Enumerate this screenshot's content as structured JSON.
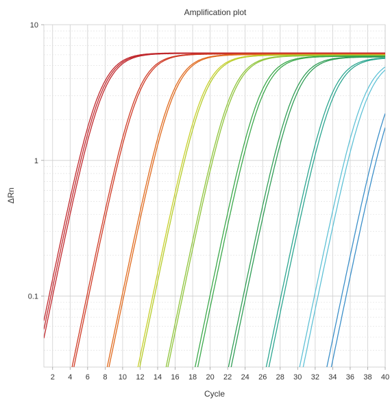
{
  "chart_data": {
    "type": "line",
    "title": "Amplification plot",
    "xlabel": "Cycle",
    "ylabel": "ΔRn",
    "xlim": [
      1,
      40
    ],
    "ylim": [
      0.03,
      10
    ],
    "y_scale": "log",
    "x_ticks": [
      2,
      4,
      6,
      8,
      10,
      12,
      14,
      16,
      18,
      20,
      22,
      24,
      26,
      28,
      30,
      32,
      34,
      36,
      38,
      40
    ],
    "y_ticks": [
      0.1,
      1,
      10
    ],
    "y_tick_labels": [
      "0.1",
      "1",
      "10"
    ],
    "grid": true,
    "legend": "none",
    "curve_shape": {
      "plateau_start": 5.6,
      "plateau_end": 6.2,
      "steepness": 0.72,
      "x_start": 1,
      "x_end": 40
    },
    "series": [
      {
        "color": "#c0282d",
        "midpoint": 7.3
      },
      {
        "color": "#c0282d",
        "midpoint": 7.5
      },
      {
        "color": "#c0282d",
        "midpoint": 7.7
      },
      {
        "color": "#cf3a25",
        "midpoint": 11.6
      },
      {
        "color": "#cf3a25",
        "midpoint": 11.8
      },
      {
        "color": "#e06a1e",
        "midpoint": 15.6
      },
      {
        "color": "#e06a1e",
        "midpoint": 15.8
      },
      {
        "color": "#c7cf2a",
        "midpoint": 19.1
      },
      {
        "color": "#b5cc2a",
        "midpoint": 19.3
      },
      {
        "color": "#8fc43b",
        "midpoint": 22.3
      },
      {
        "color": "#8fc43b",
        "midpoint": 22.5
      },
      {
        "color": "#3aa84a",
        "midpoint": 25.6
      },
      {
        "color": "#3aa84a",
        "midpoint": 25.9
      },
      {
        "color": "#2f9d55",
        "midpoint": 29.4
      },
      {
        "color": "#2f9d55",
        "midpoint": 29.7
      },
      {
        "color": "#2aa58f",
        "midpoint": 33.7
      },
      {
        "color": "#2aa58f",
        "midpoint": 34.0
      },
      {
        "color": "#5fc1d6",
        "midpoint": 37.5
      },
      {
        "color": "#5fc1d6",
        "midpoint": 37.9
      },
      {
        "color": "#3b8fc9",
        "midpoint": 40.6
      },
      {
        "color": "#3b8fc9",
        "midpoint": 41.1
      }
    ]
  }
}
